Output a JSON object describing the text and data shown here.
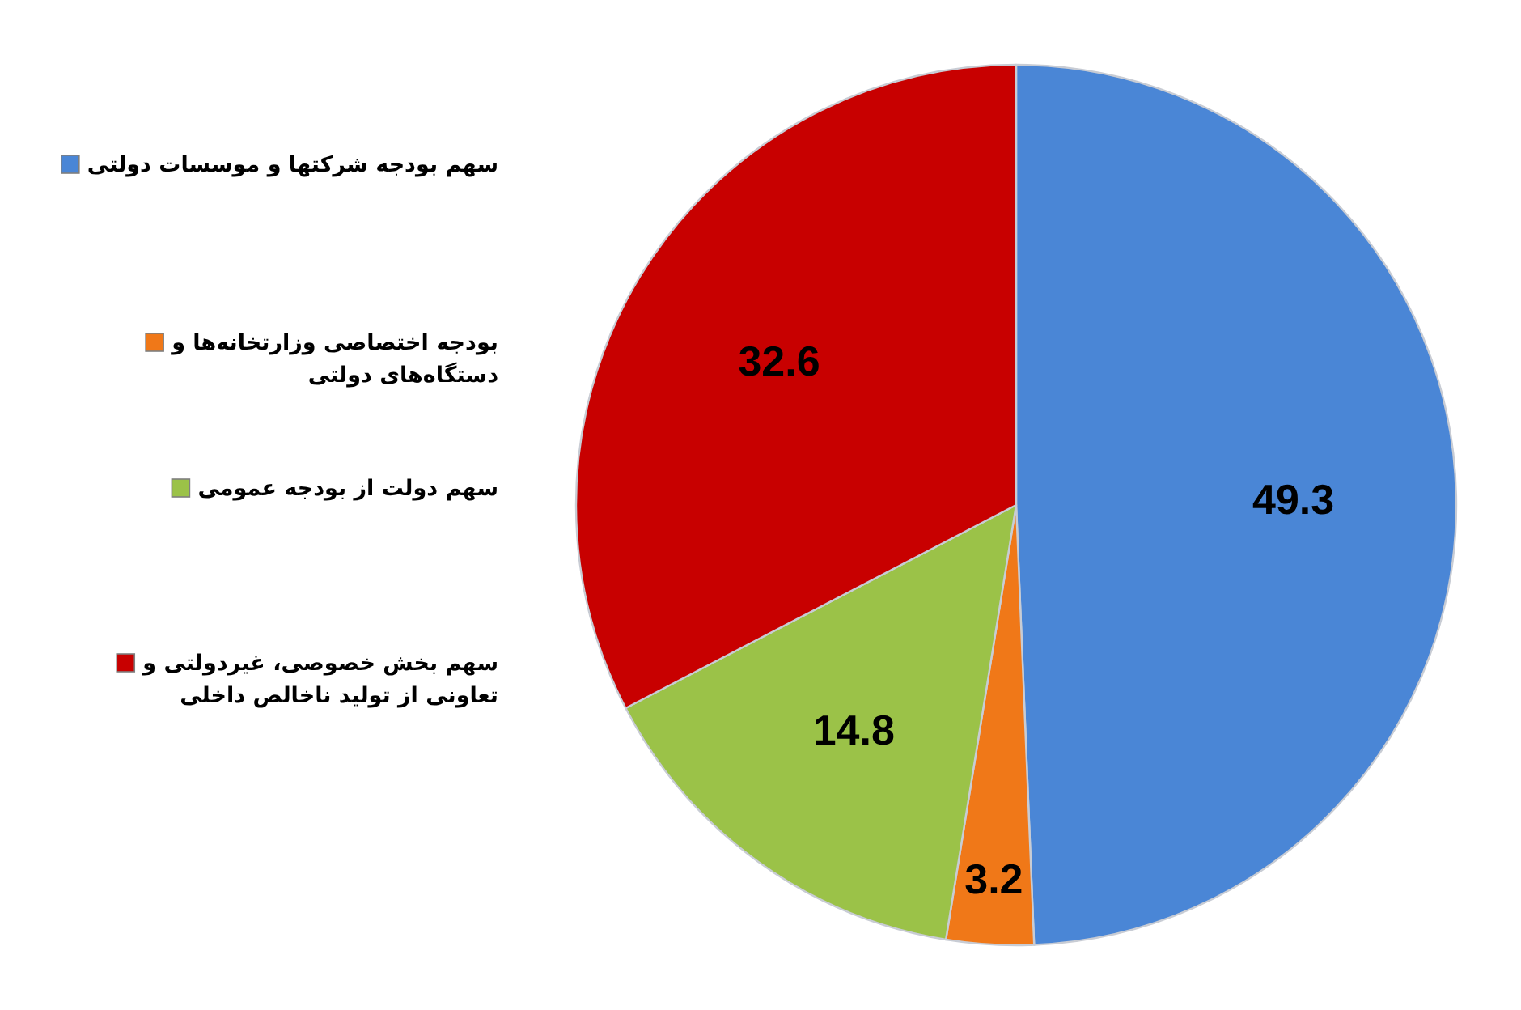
{
  "chart_data": {
    "type": "pie",
    "categories": [
      "سهم بودجه شرکتها و موسسات دولتی",
      "بودجه اختصاصی وزارتخانه‌ها و دستگاه‌های دولتی",
      "سهم دولت از بودجه عمومی",
      "سهم بخش خصوصی، غیردولتی و تعاونی از تولید ناخالص داخلی"
    ],
    "values": [
      49.3,
      3.2,
      14.8,
      32.6
    ],
    "colors": [
      "#4a86d6",
      "#f07818",
      "#9bc248",
      "#c80000"
    ],
    "data_labels": true,
    "legend": "left"
  }
}
